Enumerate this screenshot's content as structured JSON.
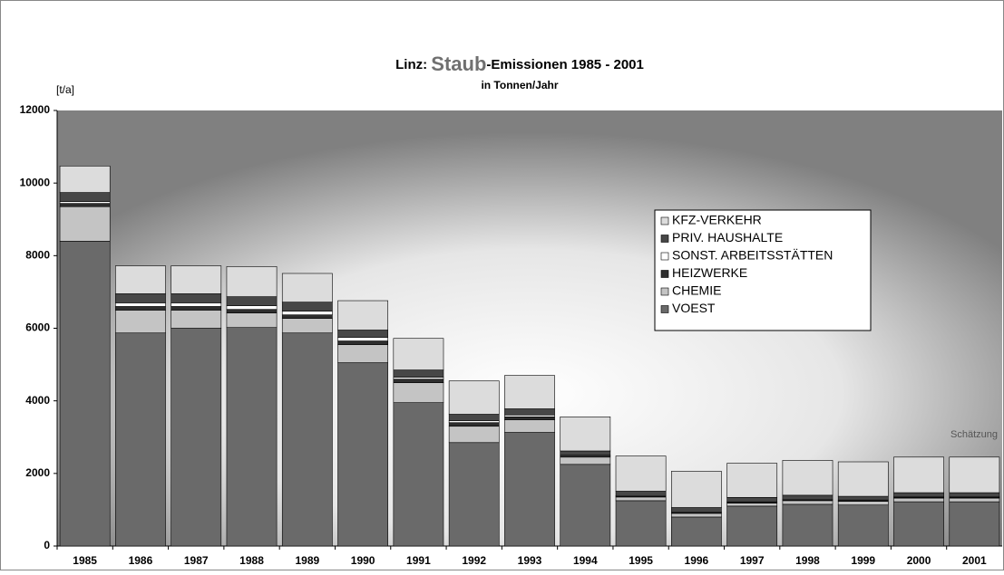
{
  "chart_data": {
    "type": "stacked_bar",
    "title": [
      "Linz: ",
      "Staub",
      "-Emissionen 1985 - 2001"
    ],
    "subtitle": "in Tonnen/Jahr",
    "y_label": "[t/a]",
    "annotation": "Schätzung",
    "categories": [
      "1985",
      "1986",
      "1987",
      "1988",
      "1989",
      "1990",
      "1991",
      "1992",
      "1993",
      "1994",
      "1995",
      "1996",
      "1997",
      "1998",
      "1999",
      "2000",
      "2001"
    ],
    "series": [
      {
        "name": "VOEST",
        "color": "#6a6a6a",
        "values": [
          8400,
          5870,
          6000,
          6020,
          5870,
          5050,
          3950,
          2850,
          3130,
          2250,
          1250,
          800,
          1100,
          1150,
          1130,
          1220,
          1220
        ]
      },
      {
        "name": "CHEMIE",
        "color": "#c4c4c4",
        "values": [
          950,
          630,
          500,
          400,
          400,
          500,
          550,
          450,
          350,
          200,
          100,
          100,
          80,
          100,
          100,
          100,
          100
        ]
      },
      {
        "name": "HEIZWERKE",
        "color": "#2e2e2e",
        "values": [
          90,
          100,
          100,
          100,
          100,
          100,
          100,
          100,
          80,
          30,
          20,
          20,
          20,
          20,
          20,
          20,
          20
        ]
      },
      {
        "name": "SONST. ARBEITSSTÄTTEN",
        "color": "#ffffff",
        "values": [
          50,
          100,
          100,
          100,
          100,
          100,
          50,
          50,
          50,
          20,
          20,
          20,
          20,
          20,
          20,
          20,
          20
        ]
      },
      {
        "name": "PRIV. HAUSHALTE",
        "color": "#474747",
        "values": [
          250,
          250,
          250,
          250,
          250,
          200,
          200,
          180,
          170,
          120,
          120,
          120,
          120,
          110,
          100,
          110,
          110
        ]
      },
      {
        "name": "KFZ-VERKEHR",
        "color": "#dcdcdc",
        "values": [
          730,
          770,
          770,
          830,
          790,
          810,
          870,
          920,
          920,
          940,
          970,
          1000,
          940,
          960,
          950,
          980,
          980
        ]
      }
    ],
    "ylim": [
      0,
      12000
    ],
    "yticks": [
      0,
      2000,
      4000,
      6000,
      8000,
      10000,
      12000
    ]
  }
}
